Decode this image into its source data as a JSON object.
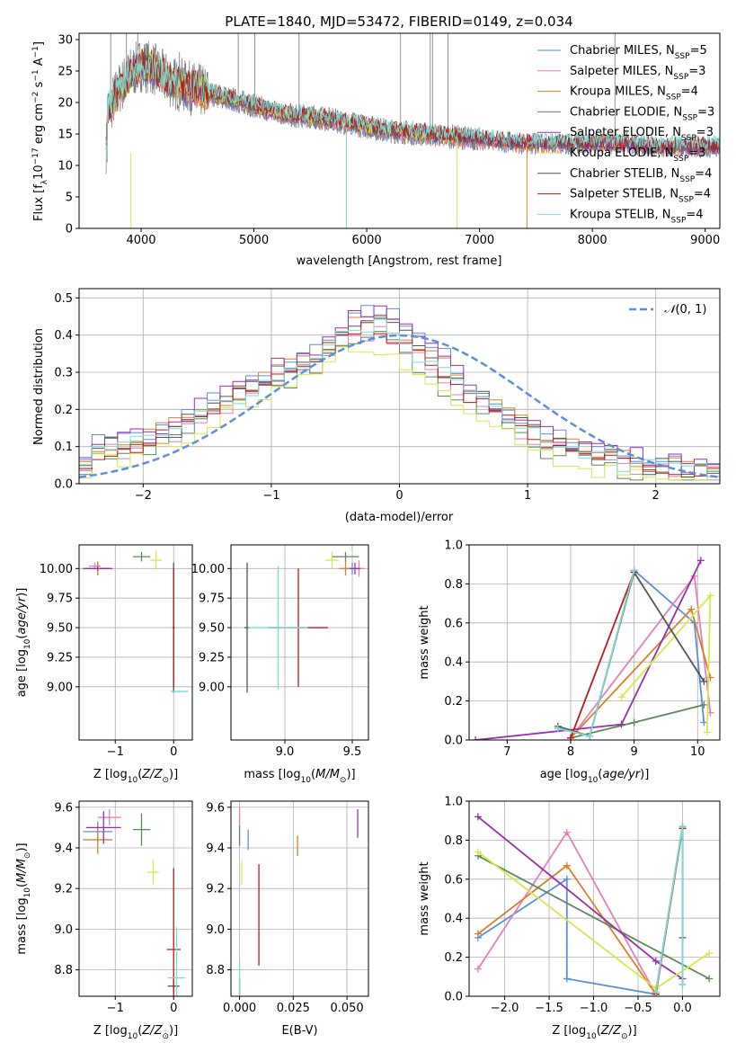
{
  "figure_title": "PLATE=1840, MJD=53472, FIBERID=0149, z=0.034",
  "colors": {
    "chabrier_miles": "#5b8ee0",
    "salpeter_miles": "#e67fb5",
    "kroupa_miles": "#d9802a",
    "chabrier_elodie": "#5a8a5a",
    "salpeter_elodie": "#9a2fb0",
    "kroupa_elodie": "#d7e84a",
    "chabrier_stelib": "#555555",
    "salpeter_stelib": "#c01818",
    "kroupa_stelib": "#7ed9d0",
    "normal_curve": "#5b8ee0",
    "grid": "#b0b0b0"
  },
  "chart_data": [
    {
      "id": "spectrum",
      "type": "line",
      "title": "PLATE=1840, MJD=53472, FIBERID=0149, z=0.034",
      "xlabel": "wavelength [Angstrom, rest frame]",
      "ylabel": "Flux [f_λ 10^-17 erg cm^-2 s^-1 A^-1]",
      "xlim": [
        3450,
        9130
      ],
      "ylim": [
        0,
        31
      ],
      "xticks": [
        4000,
        5000,
        6000,
        7000,
        8000,
        9000
      ],
      "yticks": [
        0,
        5,
        10,
        15,
        20,
        25,
        30
      ],
      "grid": false,
      "legend_position": "top-right",
      "observed_continuum": {
        "x": [
          3700,
          3800,
          3900,
          4000,
          4100,
          4200,
          4300,
          4500,
          4700,
          5000,
          5300,
          5600,
          5900,
          6200,
          6500,
          6800,
          7100,
          7400,
          7700,
          8000,
          8300,
          8600,
          8800
        ],
        "y": [
          18.5,
          22,
          24.5,
          26,
          25.5,
          24,
          23,
          22,
          21,
          19.5,
          18,
          17.5,
          16.5,
          15.5,
          15,
          14.5,
          14,
          13.5,
          13.5,
          13.5,
          13.5,
          13,
          13
        ]
      },
      "legend": [
        {
          "label": "Chabrier MILES, N",
          "sub": "SSP",
          "count": "=5",
          "color_key": "chabrier_miles"
        },
        {
          "label": "Salpeter MILES, N",
          "sub": "SSP",
          "count": "=3",
          "color_key": "salpeter_miles"
        },
        {
          "label": "Kroupa MILES, N",
          "sub": "SSP",
          "count": "=4",
          "color_key": "kroupa_miles"
        },
        {
          "label": "Chabrier ELODIE, N",
          "sub": "SSP",
          "count": "=3",
          "color_key": "chabrier_elodie"
        },
        {
          "label": "Salpeter ELODIE, N",
          "sub": "SSP",
          "count": "=3",
          "color_key": "salpeter_elodie"
        },
        {
          "label": "Kroupa ELODIE, N",
          "sub": "SSP",
          "count": "=3",
          "color_key": "kroupa_elodie"
        },
        {
          "label": "Chabrier STELIB, N",
          "sub": "SSP",
          "count": "=4",
          "color_key": "chabrier_stelib"
        },
        {
          "label": "Salpeter STELIB, N",
          "sub": "SSP",
          "count": "=4",
          "color_key": "salpeter_stelib"
        },
        {
          "label": "Kroupa STELIB, N",
          "sub": "SSP",
          "count": "=4",
          "color_key": "kroupa_stelib"
        }
      ]
    },
    {
      "id": "residuals",
      "type": "line",
      "xlabel": "(data-model)/error",
      "ylabel": "Normed distribution",
      "xlim": [
        -2.5,
        2.5
      ],
      "ylim": [
        0,
        0.525
      ],
      "xticks": [
        -2,
        -1,
        0,
        1,
        2
      ],
      "yticks": [
        0.0,
        0.1,
        0.2,
        0.3,
        0.4,
        0.5
      ],
      "grid": true,
      "legend_position": "top-right",
      "normal_curve": {
        "label": "N(0, 1)",
        "mean": 0,
        "sigma": 1
      },
      "histogram": {
        "bin_edges_start": -2.5,
        "bin_width": 0.1,
        "base_values": [
          0.07,
          0.09,
          0.1,
          0.1,
          0.11,
          0.12,
          0.13,
          0.14,
          0.16,
          0.18,
          0.2,
          0.22,
          0.24,
          0.25,
          0.27,
          0.29,
          0.3,
          0.31,
          0.33,
          0.36,
          0.39,
          0.41,
          0.42,
          0.43,
          0.41,
          0.38,
          0.35,
          0.33,
          0.3,
          0.27,
          0.24,
          0.22,
          0.2,
          0.17,
          0.15,
          0.13,
          0.11,
          0.1,
          0.09,
          0.08,
          0.07,
          0.06,
          0.05,
          0.05,
          0.04,
          0.04,
          0.04,
          0.03,
          0.03,
          0.03
        ]
      }
    },
    {
      "id": "age_vs_Z",
      "type": "scatter",
      "xlabel": "Z [log10(Z/Z⊙)]",
      "ylabel": "age [log10(age/yr)]",
      "xlim": [
        -1.62,
        0.32
      ],
      "ylim": [
        8.55,
        10.2
      ],
      "xticks": [
        -1,
        0
      ],
      "yticks": [
        9.0,
        9.25,
        9.5,
        9.75,
        10.0
      ],
      "grid": true,
      "points": [
        {
          "x": -1.3,
          "y": 10.0,
          "xerr": 0.2,
          "yerr": 0.05,
          "color_key": "chabrier_miles"
        },
        {
          "x": -1.35,
          "y": 10.02,
          "xerr": 0.1,
          "yerr": 0.03,
          "color_key": "salpeter_miles"
        },
        {
          "x": -1.3,
          "y": 10.0,
          "xerr": 0.05,
          "yerr": 0.06,
          "color_key": "kroupa_miles"
        },
        {
          "x": -0.55,
          "y": 10.1,
          "xerr": 0.15,
          "yerr": 0.04,
          "color_key": "chabrier_elodie"
        },
        {
          "x": -1.3,
          "y": 10.0,
          "xerr": 0.25,
          "yerr": 0.02,
          "color_key": "salpeter_elodie"
        },
        {
          "x": -0.3,
          "y": 10.07,
          "xerr": 0.1,
          "yerr": 0.08,
          "color_key": "kroupa_elodie"
        },
        {
          "x": 0.0,
          "y": 9.5,
          "xerr": 0.02,
          "yerr": 0.55,
          "color_key": "chabrier_stelib"
        },
        {
          "x": 0.0,
          "y": 9.5,
          "xerr": 0.01,
          "yerr": 0.5,
          "color_key": "salpeter_stelib"
        },
        {
          "x": 0.1,
          "y": 8.96,
          "xerr": 0.15,
          "yerr": 0.01,
          "color_key": "kroupa_stelib"
        }
      ]
    },
    {
      "id": "age_vs_mass",
      "type": "scatter",
      "xlabel": "mass [log10(M/M⊙)]",
      "ylabel": "",
      "xlim": [
        8.6,
        9.62
      ],
      "ylim": [
        8.55,
        10.2
      ],
      "xticks": [
        9.0,
        9.5
      ],
      "yticks": [
        9.0,
        9.25,
        9.5,
        9.75,
        10.0
      ],
      "grid": true,
      "points": [
        {
          "x": 9.5,
          "y": 10.0,
          "xerr": 0.05,
          "yerr": 0.05,
          "color_key": "chabrier_miles"
        },
        {
          "x": 9.55,
          "y": 10.0,
          "xerr": 0.04,
          "yerr": 0.07,
          "color_key": "salpeter_miles"
        },
        {
          "x": 9.45,
          "y": 10.0,
          "xerr": 0.05,
          "yerr": 0.06,
          "color_key": "kroupa_miles"
        },
        {
          "x": 9.45,
          "y": 10.1,
          "xerr": 0.1,
          "yerr": 0.04,
          "color_key": "chabrier_elodie"
        },
        {
          "x": 9.52,
          "y": 10.0,
          "xerr": 0.04,
          "yerr": 0.05,
          "color_key": "salpeter_elodie"
        },
        {
          "x": 9.35,
          "y": 10.07,
          "xerr": 0.05,
          "yerr": 0.07,
          "color_key": "kroupa_elodie"
        },
        {
          "x": 8.72,
          "y": 9.5,
          "xerr": 0.02,
          "yerr": 0.55,
          "color_key": "chabrier_stelib"
        },
        {
          "x": 9.1,
          "y": 9.5,
          "xerr": 0.22,
          "yerr": 0.5,
          "color_key": "salpeter_stelib"
        },
        {
          "x": 8.95,
          "y": 9.5,
          "xerr": 0.22,
          "yerr": 0.52,
          "color_key": "kroupa_stelib"
        }
      ]
    },
    {
      "id": "weight_vs_age",
      "type": "line",
      "xlabel": "age [log10(age/yr)]",
      "ylabel": "mass weight",
      "xlim": [
        6.4,
        10.35
      ],
      "ylim": [
        0,
        1.0
      ],
      "xticks": [
        7,
        8,
        9,
        10
      ],
      "yticks": [
        0.0,
        0.2,
        0.4,
        0.6,
        0.8,
        1.0
      ],
      "grid": true,
      "series": [
        {
          "color_key": "chabrier_miles",
          "x": [
            7.8,
            8.3,
            9.0,
            9.95,
            10.1
          ],
          "y": [
            0.06,
            0.02,
            0.87,
            0.6,
            0.09
          ]
        },
        {
          "color_key": "salpeter_miles",
          "x": [
            8.0,
            9.95,
            10.2
          ],
          "y": [
            0.01,
            0.84,
            0.14
          ]
        },
        {
          "color_key": "kroupa_miles",
          "x": [
            8.0,
            9.9,
            10.2
          ],
          "y": [
            0.01,
            0.67,
            0.32
          ]
        },
        {
          "color_key": "chabrier_elodie",
          "x": [
            8.0,
            9.0,
            10.1
          ],
          "y": [
            0.01,
            0.09,
            0.18
          ]
        },
        {
          "color_key": "salpeter_elodie",
          "x": [
            6.5,
            8.8,
            10.05
          ],
          "y": [
            0.0,
            0.08,
            0.92
          ]
        },
        {
          "color_key": "kroupa_elodie",
          "x": [
            8.8,
            10.2,
            10.15
          ],
          "y": [
            0.22,
            0.74,
            0.04
          ]
        },
        {
          "color_key": "chabrier_stelib",
          "x": [
            7.8,
            8.3,
            9.0,
            10.1
          ],
          "y": [
            0.07,
            0.02,
            0.86,
            0.3
          ]
        },
        {
          "color_key": "salpeter_stelib",
          "x": [
            8.0,
            9.0
          ],
          "y": [
            0.01,
            0.86
          ]
        },
        {
          "color_key": "kroupa_stelib",
          "x": [
            7.8,
            8.3,
            9.0
          ],
          "y": [
            0.06,
            0.02,
            0.87
          ]
        }
      ]
    },
    {
      "id": "mass_vs_Z",
      "type": "scatter",
      "xlabel": "Z [log10(Z/Z⊙)]",
      "ylabel": "mass [log10(M/M⊙)]",
      "xlim": [
        -1.62,
        0.32
      ],
      "ylim": [
        8.67,
        9.63
      ],
      "xticks": [
        -1,
        0
      ],
      "yticks": [
        8.8,
        9.0,
        9.2,
        9.4,
        9.6
      ],
      "grid": true,
      "points": [
        {
          "x": -1.3,
          "y": 9.48,
          "xerr": 0.25,
          "yerr": 0.05,
          "color_key": "chabrier_miles"
        },
        {
          "x": -1.1,
          "y": 9.55,
          "xerr": 0.2,
          "yerr": 0.04,
          "color_key": "salpeter_miles"
        },
        {
          "x": -1.3,
          "y": 9.44,
          "xerr": 0.25,
          "yerr": 0.07,
          "color_key": "kroupa_miles"
        },
        {
          "x": -0.55,
          "y": 9.49,
          "xerr": 0.15,
          "yerr": 0.08,
          "color_key": "chabrier_elodie"
        },
        {
          "x": -1.2,
          "y": 9.5,
          "xerr": 0.3,
          "yerr": 0.08,
          "color_key": "salpeter_elodie"
        },
        {
          "x": -0.35,
          "y": 9.28,
          "xerr": 0.1,
          "yerr": 0.06,
          "color_key": "kroupa_elodie"
        },
        {
          "x": 0.0,
          "y": 8.72,
          "xerr": 0.1,
          "yerr": 0.04,
          "color_key": "chabrier_stelib"
        },
        {
          "x": 0.0,
          "y": 8.9,
          "xerr": 0.12,
          "yerr": 0.4,
          "color_key": "salpeter_stelib"
        },
        {
          "x": 0.05,
          "y": 8.76,
          "xerr": 0.15,
          "yerr": 0.25,
          "color_key": "kroupa_stelib"
        }
      ]
    },
    {
      "id": "mass_vs_ebv",
      "type": "scatter",
      "xlabel": "E(B-V)",
      "ylabel": "",
      "xlim": [
        -0.004,
        0.06
      ],
      "ylim": [
        8.67,
        9.63
      ],
      "xticks": [
        0.0,
        0.025,
        0.05
      ],
      "yticks": [
        8.8,
        9.0,
        9.2,
        9.4,
        9.6
      ],
      "grid": true,
      "points": [
        {
          "x": 0.004,
          "y": 9.44,
          "xerr": 0.0,
          "yerr": 0.05,
          "color_key": "chabrier_miles"
        },
        {
          "x": 0.0,
          "y": 9.55,
          "xerr": 0.0,
          "yerr": 0.05,
          "color_key": "salpeter_miles"
        },
        {
          "x": 0.027,
          "y": 9.41,
          "xerr": 0.0,
          "yerr": 0.05,
          "color_key": "kroupa_miles"
        },
        {
          "x": 0.0,
          "y": 9.46,
          "xerr": 0.0,
          "yerr": 0.05,
          "color_key": "chabrier_elodie"
        },
        {
          "x": 0.055,
          "y": 9.52,
          "xerr": 0.0,
          "yerr": 0.07,
          "color_key": "salpeter_elodie"
        },
        {
          "x": 0.001,
          "y": 9.28,
          "xerr": 0.0,
          "yerr": 0.06,
          "color_key": "kroupa_elodie"
        },
        {
          "x": 0.0,
          "y": 8.72,
          "xerr": 0.0,
          "yerr": 0.04,
          "color_key": "chabrier_stelib"
        },
        {
          "x": 0.009,
          "y": 9.07,
          "xerr": 0.0,
          "yerr": 0.25,
          "color_key": "salpeter_stelib"
        },
        {
          "x": 0.0,
          "y": 8.76,
          "xerr": 0.0,
          "yerr": 0.08,
          "color_key": "kroupa_stelib"
        }
      ]
    },
    {
      "id": "weight_vs_Z",
      "type": "line",
      "xlabel": "Z [log10(Z/Z⊙)]",
      "ylabel": "mass weight",
      "xlim": [
        -2.4,
        0.42
      ],
      "ylim": [
        0,
        1.0
      ],
      "xticks": [
        -2.0,
        -1.5,
        -1.0,
        -0.5,
        0.0
      ],
      "yticks": [
        0.0,
        0.2,
        0.4,
        0.6,
        0.8,
        1.0
      ],
      "grid": true,
      "series": [
        {
          "color_key": "chabrier_miles",
          "x": [
            -2.3,
            -1.3,
            -1.3,
            -0.3,
            0.0,
            0.0
          ],
          "y": [
            0.3,
            0.6,
            0.09,
            0.01,
            0.86,
            0.06
          ]
        },
        {
          "color_key": "salpeter_miles",
          "x": [
            -2.3,
            -1.3,
            -0.3
          ],
          "y": [
            0.14,
            0.84,
            0.01
          ]
        },
        {
          "color_key": "kroupa_miles",
          "x": [
            -2.3,
            -1.3,
            -0.3
          ],
          "y": [
            0.32,
            0.67,
            0.01
          ]
        },
        {
          "color_key": "chabrier_elodie",
          "x": [
            -2.3,
            0.3
          ],
          "y": [
            0.72,
            0.09
          ]
        },
        {
          "color_key": "salpeter_elodie",
          "x": [
            -2.3,
            -0.3,
            0.0
          ],
          "y": [
            0.92,
            0.18,
            0.09
          ]
        },
        {
          "color_key": "kroupa_elodie",
          "x": [
            -2.3,
            -0.3,
            0.3
          ],
          "y": [
            0.74,
            0.04,
            0.22
          ]
        },
        {
          "color_key": "chabrier_stelib",
          "x": [
            -0.3,
            0.0,
            0.0
          ],
          "y": [
            0.02,
            0.87,
            0.3
          ]
        },
        {
          "color_key": "salpeter_stelib",
          "x": [
            -0.3,
            0.0
          ],
          "y": [
            0.01,
            0.86
          ]
        },
        {
          "color_key": "kroupa_stelib",
          "x": [
            -0.3,
            0.0,
            0.0
          ],
          "y": [
            0.02,
            0.87,
            0.06
          ]
        }
      ]
    }
  ]
}
